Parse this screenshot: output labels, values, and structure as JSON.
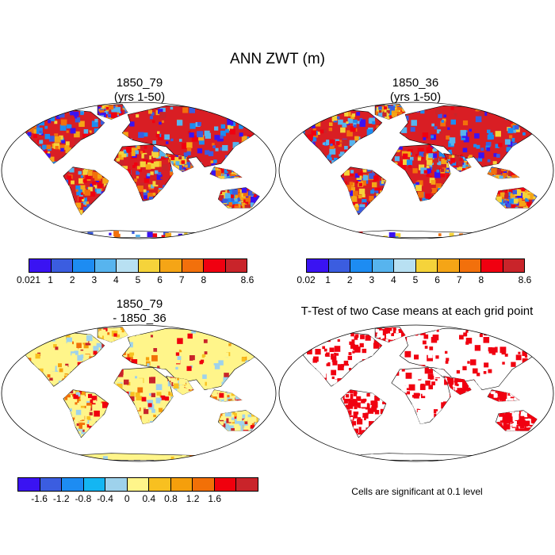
{
  "page": {
    "title": "ANN ZWT (m)"
  },
  "panels": [
    {
      "id": "p1",
      "title_line1": "1850_79",
      "title_line2": "(yrs 1-50)",
      "mode": "abs",
      "variant": 1
    },
    {
      "id": "p2",
      "title_line1": "1850_36",
      "title_line2": "(yrs 1-50)",
      "mode": "abs",
      "variant": 2
    },
    {
      "id": "p3",
      "title_line1": "1850_79",
      "title_line2": "- 1850_36",
      "mode": "diff",
      "variant": 3
    },
    {
      "id": "p4",
      "title_line1": "T-Test of two Case means at each grid point",
      "title_line2": "",
      "mode": "sig",
      "variant": 4
    }
  ],
  "colorbars": {
    "abs_left": {
      "labels": [
        "0.021",
        "1",
        "2",
        "3",
        "4",
        "5",
        "6",
        "7",
        "8",
        "8.6"
      ],
      "colors": [
        "#3a13f2",
        "#3b5de0",
        "#1d8cf2",
        "#57b4ee",
        "#b8e0f2",
        "#f5d33a",
        "#f5a516",
        "#f2700c",
        "#f00010",
        "#c9242a"
      ]
    },
    "abs_right": {
      "labels": [
        "0.02",
        "1",
        "2",
        "3",
        "4",
        "5",
        "6",
        "7",
        "8",
        "8.6"
      ],
      "colors": [
        "#3a13f2",
        "#3b5de0",
        "#1d8cf2",
        "#57b4ee",
        "#b8e0f2",
        "#f5d33a",
        "#f5a516",
        "#f2700c",
        "#f00010",
        "#c9242a"
      ]
    },
    "diff": {
      "labels": [
        "-1.6",
        "-1.2",
        "-0.8",
        "-0.4",
        "0",
        "0.4",
        "0.8",
        "1.2",
        "1.6"
      ],
      "colors": [
        "#3a13f2",
        "#3b5de0",
        "#1d8cf2",
        "#14b6f2",
        "#9ed2ec",
        "#fff58a",
        "#f8c020",
        "#f59f0c",
        "#f27007",
        "#f0000d",
        "#c9242a"
      ]
    }
  },
  "significance_note": "Cells are significant at 0.1 level"
}
